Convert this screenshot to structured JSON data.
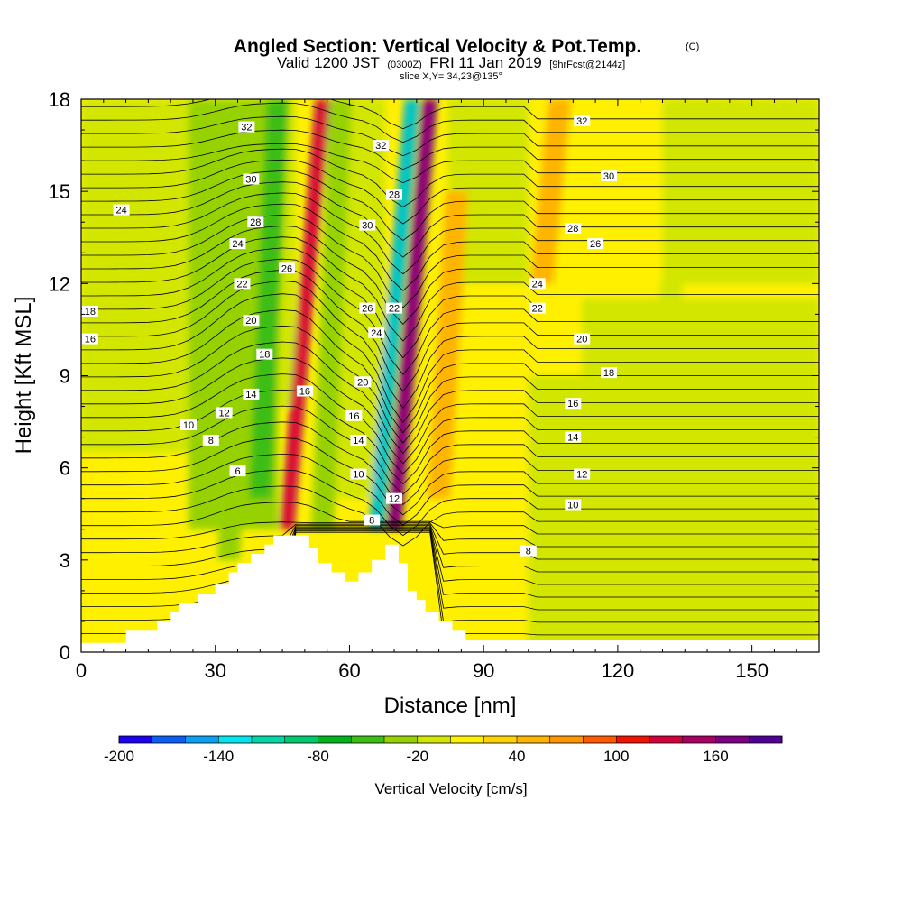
{
  "chart_data": {
    "type": "heatmap",
    "title": "Angled Section: Vertical Velocity & Pot.Temp.",
    "title_mark": "(C)",
    "subtitle_parts": [
      "Valid 1200 JST",
      "(0300Z)",
      "FRI 11 Jan 2019",
      "[9hrFcst@2144z]"
    ],
    "slice_text": "slice X,Y= 34,23@135°",
    "xlabel": "Distance [nm]",
    "ylabel": "Height [Kft MSL]",
    "xlim": [
      0,
      165
    ],
    "ylim": [
      0,
      18
    ],
    "x_ticks": [
      0,
      30,
      60,
      90,
      120,
      150
    ],
    "y_ticks": [
      0,
      3,
      6,
      9,
      12,
      15,
      18
    ],
    "colorbar": {
      "label": "Vertical Velocity [cm/s]",
      "tick_labels": [
        "-200",
        "-140",
        "-80",
        "-20",
        "40",
        "100",
        "160"
      ],
      "colors": [
        "#1e00f0",
        "#0a5ff5",
        "#0aa0f5",
        "#00e6f0",
        "#00d7a5",
        "#00c86e",
        "#00b41e",
        "#3cbe14",
        "#96d200",
        "#d2e600",
        "#fff000",
        "#ffd200",
        "#ffb400",
        "#ff9600",
        "#ff5a00",
        "#f01400",
        "#d2003c",
        "#aa0064",
        "#7d0082",
        "#500096"
      ],
      "levels": [
        -200,
        -180,
        -160,
        -140,
        -120,
        -100,
        -80,
        -60,
        -40,
        -20,
        0,
        20,
        40,
        60,
        80,
        100,
        120,
        140,
        160,
        180,
        200
      ]
    },
    "vertical_velocity_features": [
      {
        "x": 35,
        "y_from": 3,
        "y_to": 18,
        "value": -40
      },
      {
        "x": 42,
        "y_from": 5,
        "y_to": 18,
        "value": -50
      },
      {
        "x": 50,
        "y_from": 4,
        "y_to": 18,
        "value": 140
      },
      {
        "x": 56,
        "y_from": 4,
        "y_to": 18,
        "value": -40
      },
      {
        "x": 70,
        "y_from": 4,
        "y_to": 18,
        "value": -160
      },
      {
        "x": 74,
        "y_from": 4,
        "y_to": 18,
        "value": 180
      },
      {
        "x": 82,
        "y_from": 5,
        "y_to": 15,
        "value": 40
      },
      {
        "x": 105,
        "y_from": 12,
        "y_to": 18,
        "value": 50
      },
      {
        "x": 130,
        "y_from": 0,
        "y_to": 12,
        "value": -10
      },
      {
        "x": 150,
        "y_from": 0,
        "y_to": 11,
        "value": -15
      }
    ],
    "isentropes_label": "Pot.Temp.",
    "contour_labels": [
      "32",
      "30",
      "28",
      "24",
      "22",
      "20",
      "18",
      "14",
      "12",
      "10",
      "8",
      "6",
      "26",
      "16",
      "24",
      "18",
      "16",
      "32",
      "28",
      "30",
      "26",
      "22",
      "24",
      "20",
      "16",
      "14",
      "10",
      "8",
      "12",
      "32",
      "30",
      "28",
      "26",
      "24",
      "22",
      "20",
      "18",
      "16",
      "14",
      "12",
      "10",
      "8"
    ],
    "terrain_kft": [
      [
        0,
        0.3
      ],
      [
        10,
        0.3
      ],
      [
        10,
        0.7
      ],
      [
        17,
        0.7
      ],
      [
        17,
        1.0
      ],
      [
        20,
        1.0
      ],
      [
        20,
        1.3
      ],
      [
        22,
        1.3
      ],
      [
        22,
        1.6
      ],
      [
        26,
        1.6
      ],
      [
        26,
        1.9
      ],
      [
        30,
        1.9
      ],
      [
        30,
        2.2
      ],
      [
        33,
        2.2
      ],
      [
        33,
        2.6
      ],
      [
        35,
        2.6
      ],
      [
        35,
        2.9
      ],
      [
        38,
        2.9
      ],
      [
        38,
        3.2
      ],
      [
        41,
        3.2
      ],
      [
        41,
        3.5
      ],
      [
        43,
        3.5
      ],
      [
        43,
        3.8
      ],
      [
        48,
        3.8
      ],
      [
        48,
        3.8
      ],
      [
        51,
        3.8
      ],
      [
        51,
        3.4
      ],
      [
        53,
        3.4
      ],
      [
        53,
        2.9
      ],
      [
        56,
        2.9
      ],
      [
        56,
        2.6
      ],
      [
        59,
        2.6
      ],
      [
        59,
        2.3
      ],
      [
        62,
        2.3
      ],
      [
        62,
        2.6
      ],
      [
        65,
        2.6
      ],
      [
        65,
        3.0
      ],
      [
        68,
        3.0
      ],
      [
        68,
        3.5
      ],
      [
        71,
        3.5
      ],
      [
        71,
        2.9
      ],
      [
        73,
        2.9
      ],
      [
        73,
        2.0
      ],
      [
        75,
        2.0
      ],
      [
        75,
        1.7
      ],
      [
        77,
        1.7
      ],
      [
        77,
        1.3
      ],
      [
        80,
        1.3
      ],
      [
        80,
        1.0
      ],
      [
        83,
        1.0
      ],
      [
        83,
        0.7
      ],
      [
        86,
        0.7
      ],
      [
        86,
        0.4
      ],
      [
        90,
        0.4
      ],
      [
        165,
        0.4
      ]
    ]
  }
}
